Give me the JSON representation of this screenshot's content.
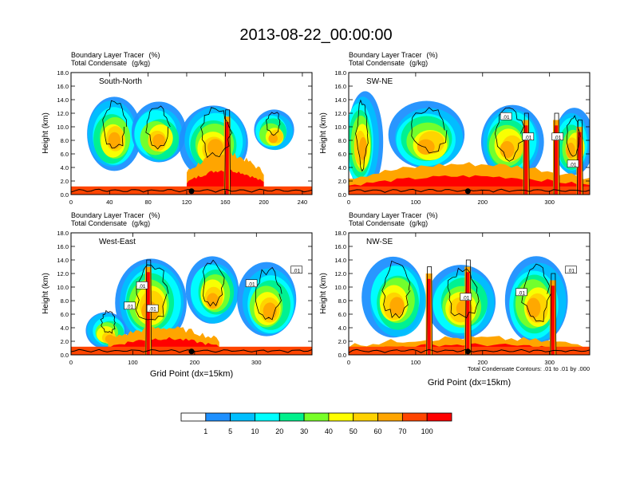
{
  "title": "2013-08-22_00:00:00",
  "colors": {
    "levels": [
      "#ffffff",
      "#1e90ff",
      "#00bfff",
      "#00ffff",
      "#00f08c",
      "#78ff28",
      "#ffff00",
      "#ffd200",
      "#ffa500",
      "#ff4500",
      "#ff0000"
    ],
    "contour": "#000000",
    "terrain": "#000000",
    "point": "#000000"
  },
  "chart_data": {
    "type": "heatmap",
    "variables": {
      "shaded": "Boundary Layer Tracer",
      "shaded_units": "(%)",
      "contoured": "Total Condensate",
      "contoured_units": "(g/kg)"
    },
    "y_axis": {
      "label": "Height (km)",
      "range": [
        0,
        18
      ],
      "ticks": [
        "0.0",
        "2.0",
        "4.0",
        "6.0",
        "8.0",
        "10.0",
        "12.0",
        "14.0",
        "16.0",
        "18.0"
      ]
    },
    "x_axis_label": "Grid Point (dx=15km)",
    "contour_note": "Total Condensate Contours: .01 to .01 by .000",
    "colorbar": {
      "labels": [
        "1",
        "5",
        "10",
        "20",
        "30",
        "40",
        "50",
        "60",
        "70",
        "100"
      ]
    },
    "panels": [
      {
        "id": "south-north",
        "name": "South-North",
        "xlim": [
          0,
          250
        ],
        "xticks": [
          "0",
          "40",
          "80",
          "120",
          "160",
          "200",
          "240"
        ],
        "marker_x": 125,
        "contour_labels": [],
        "cloud_blobs": [
          {
            "x": 45,
            "w": 40,
            "y0": 4,
            "y1": 14
          },
          {
            "x": 90,
            "w": 40,
            "y0": 5,
            "y1": 13
          },
          {
            "x": 150,
            "w": 55,
            "y0": 3,
            "y1": 13
          },
          {
            "x": 210,
            "w": 25,
            "y0": 7,
            "y1": 12
          }
        ],
        "red_layer": {
          "x0": 120,
          "x1": 200,
          "top": 6
        },
        "towers": [
          {
            "x": 162,
            "top": 11.5
          }
        ]
      },
      {
        "id": "sw-ne",
        "name": "SW-NE",
        "xlim": [
          0,
          360
        ],
        "xticks": [
          "0",
          "100",
          "200",
          "300"
        ],
        "marker_x": 178,
        "contour_labels": [
          {
            "text": ".01",
            "x": 235,
            "y": 11.5
          },
          {
            "text": ".01",
            "x": 268,
            "y": 8.5
          },
          {
            "text": ".01",
            "x": 312,
            "y": 8.5
          },
          {
            "text": ".01",
            "x": 335,
            "y": 4.5
          }
        ],
        "cloud_blobs": [
          {
            "x": 20,
            "w": 30,
            "y0": 1,
            "y1": 15
          },
          {
            "x": 120,
            "w": 90,
            "y0": 4,
            "y1": 13
          },
          {
            "x": 240,
            "w": 70,
            "y0": 3,
            "y1": 13
          },
          {
            "x": 335,
            "w": 35,
            "y0": 3,
            "y1": 12
          }
        ],
        "red_layer": {
          "x0": 0,
          "x1": 360,
          "top": 4.5
        },
        "towers": [
          {
            "x": 265,
            "top": 11
          },
          {
            "x": 310,
            "top": 11
          },
          {
            "x": 345,
            "top": 10
          }
        ]
      },
      {
        "id": "west-east",
        "name": "West-East",
        "xlim": [
          0,
          390
        ],
        "xticks": [
          "0",
          "100",
          "200",
          "300"
        ],
        "marker_x": 195,
        "contour_labels": [
          {
            "text": ".01",
            "x": 115,
            "y": 10.2
          },
          {
            "text": ".01",
            "x": 95,
            "y": 7.2
          },
          {
            "text": ".01",
            "x": 132,
            "y": 6.8
          },
          {
            "text": ".01",
            "x": 292,
            "y": 10.5
          },
          {
            "text": ".01",
            "x": 365,
            "y": 12.5
          }
        ],
        "cloud_blobs": [
          {
            "x": 130,
            "w": 90,
            "y0": 2,
            "y1": 14
          },
          {
            "x": 230,
            "w": 60,
            "y0": 5,
            "y1": 14
          },
          {
            "x": 320,
            "w": 70,
            "y0": 3,
            "y1": 13
          },
          {
            "x": 60,
            "w": 40,
            "y0": 1.5,
            "y1": 6
          }
        ],
        "red_layer": {
          "x0": 60,
          "x1": 240,
          "top": 4
        },
        "towers": [
          {
            "x": 125,
            "top": 13
          }
        ]
      },
      {
        "id": "nw-se",
        "name": "NW-SE",
        "xlim": [
          0,
          360
        ],
        "xticks": [
          "0",
          "100",
          "200",
          "300"
        ],
        "marker_x": 178,
        "contour_labels": [
          {
            "text": ".01",
            "x": 175,
            "y": 8.5
          },
          {
            "text": ".01",
            "x": 258,
            "y": 9.2
          },
          {
            "text": ".01",
            "x": 332,
            "y": 12.5
          }
        ],
        "cloud_blobs": [
          {
            "x": 70,
            "w": 70,
            "y0": 3,
            "y1": 14
          },
          {
            "x": 170,
            "w": 80,
            "y0": 3,
            "y1": 13
          },
          {
            "x": 280,
            "w": 70,
            "y0": 2,
            "y1": 14
          }
        ],
        "red_layer": {
          "x0": 0,
          "x1": 360,
          "top": 2.5
        },
        "towers": [
          {
            "x": 120,
            "top": 12
          },
          {
            "x": 178,
            "top": 13
          },
          {
            "x": 305,
            "top": 11
          }
        ]
      }
    ]
  }
}
